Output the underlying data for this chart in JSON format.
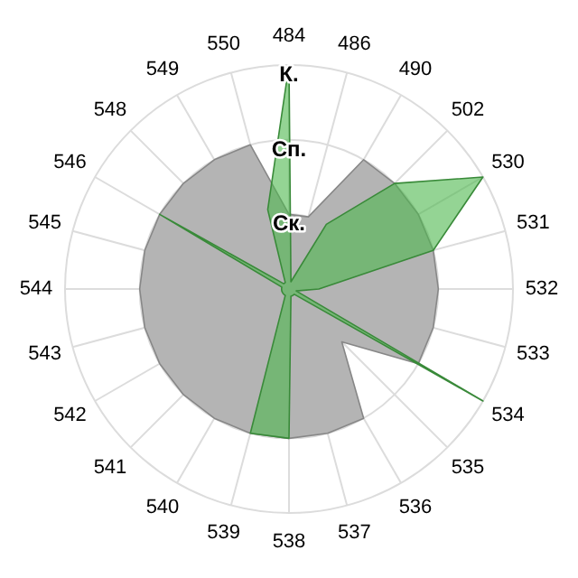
{
  "chart_data": {
    "type": "radar",
    "categories": [
      "484",
      "486",
      "490",
      "502",
      "530",
      "531",
      "532",
      "533",
      "534",
      "535",
      "536",
      "537",
      "538",
      "539",
      "540",
      "541",
      "542",
      "543",
      "544",
      "545",
      "546",
      "548",
      "549",
      "550"
    ],
    "series": [
      {
        "color": "#b4b4b4",
        "values": [
          1.0,
          1.0,
          2.0,
          2.0,
          2.0,
          2.0,
          2.0,
          2.0,
          2.0,
          1.0,
          2.0,
          2.0,
          2.0,
          2.0,
          2.0,
          2.0,
          2.0,
          2.0,
          2.0,
          2.0,
          2.0,
          2.0,
          2.0,
          2.0
        ]
      },
      {
        "color": "#4cb84c",
        "values": [
          3.0,
          0.1,
          1.0,
          2.0,
          3.0,
          2.0,
          0.4,
          0.1,
          3.0,
          0.1,
          0.1,
          0.1,
          2.0,
          2.0,
          0.1,
          0.1,
          0.1,
          0.1,
          0.1,
          0.1,
          2.0,
          0.1,
          0.1,
          1.1
        ]
      }
    ],
    "ylim": [
      0,
      3
    ],
    "yticks": [
      {
        "value": 1,
        "label": "Ск."
      },
      {
        "value": 2,
        "label": "Сп."
      },
      {
        "value": 3,
        "label": "К."
      }
    ],
    "grid": true
  }
}
